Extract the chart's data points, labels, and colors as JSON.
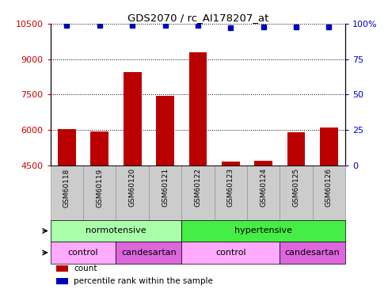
{
  "title": "GDS2070 / rc_AI178207_at",
  "samples": [
    "GSM60118",
    "GSM60119",
    "GSM60120",
    "GSM60121",
    "GSM60122",
    "GSM60123",
    "GSM60124",
    "GSM60125",
    "GSM60126"
  ],
  "counts": [
    6050,
    5950,
    8450,
    7450,
    9300,
    4650,
    4700,
    5900,
    6100
  ],
  "percentile_ranks": [
    99,
    99,
    99,
    99,
    99,
    97,
    98,
    98,
    98
  ],
  "ylim_left": [
    4500,
    10500
  ],
  "ylim_right": [
    0,
    100
  ],
  "yticks_left": [
    4500,
    6000,
    7500,
    9000,
    10500
  ],
  "yticks_right": [
    0,
    25,
    50,
    75,
    100
  ],
  "bar_color": "#bb0000",
  "percentile_color": "#0000bb",
  "disease_state_groups": [
    {
      "label": "normotensive",
      "start": 0,
      "end": 4,
      "color": "#aaffaa"
    },
    {
      "label": "hypertensive",
      "start": 4,
      "end": 9,
      "color": "#44ee44"
    }
  ],
  "agent_groups": [
    {
      "label": "control",
      "start": 0,
      "end": 2,
      "color": "#ffaaff"
    },
    {
      "label": "candesartan",
      "start": 2,
      "end": 4,
      "color": "#dd66dd"
    },
    {
      "label": "control",
      "start": 4,
      "end": 7,
      "color": "#ffaaff"
    },
    {
      "label": "candesartan",
      "start": 7,
      "end": 9,
      "color": "#dd66dd"
    }
  ],
  "legend_items": [
    {
      "label": "count",
      "color": "#bb0000",
      "marker": "s"
    },
    {
      "label": "percentile rank within the sample",
      "color": "#0000bb",
      "marker": "s"
    }
  ],
  "background_color": "#ffffff",
  "tick_label_color_left": "#cc0000",
  "tick_label_color_right": "#0000cc",
  "sample_bg_color": "#cccccc",
  "sample_bg_color_alt": "#bbbbbb"
}
